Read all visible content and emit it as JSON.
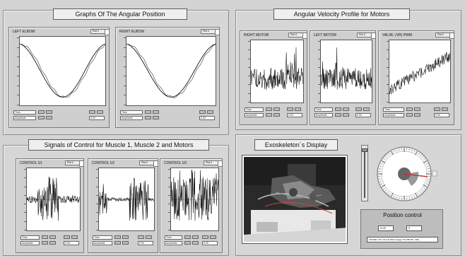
{
  "sections": {
    "angular_position": {
      "title": "Graphs Of The Angular Position"
    },
    "velocity": {
      "title": "Angular Velocity Profile for Motors"
    },
    "signals": {
      "title": "Signals of Control for Muscle 1, Muscle 2 and Motors"
    },
    "exoskeleton": {
      "title": "Exoskeleton´s Display"
    }
  },
  "graphs": {
    "left_elbow": {
      "title": "LEFT ELBOW",
      "plot_btn": "Plot 0",
      "ctrl1": "Time",
      "ctrl2": "Amplitude",
      "readout": "0.00"
    },
    "right_elbow": {
      "title": "RIGHT ELBOW",
      "plot_btn": "Plot 0",
      "ctrl1": "Time",
      "ctrl2": "Amplitude",
      "readout": "0.00"
    },
    "right_motor": {
      "title": "RIGHT MOTOR",
      "plot_btn": "Plot 0",
      "ctrl1": "Time",
      "ctrl2": "Amplitude",
      "readout": "0.00"
    },
    "left_motor": {
      "title": "LEFT MOTOR",
      "plot_btn": "Plot 0",
      "ctrl1": "Time",
      "ctrl2": "Amplitude",
      "readout": "0.00"
    },
    "valve": {
      "title": "VALVE: (VR) PWM",
      "plot_btn": "Plot 0",
      "ctrl1": "Time",
      "ctrl2": "Amplitude",
      "readout": "0.00"
    },
    "control_u1": {
      "title": "CONTROL U1",
      "plot_btn": "Plot 0",
      "ctrl1": "Time",
      "ctrl2": "Amplitude",
      "readout": "0.00"
    },
    "control_u2": {
      "title": "CONTROL U2",
      "plot_btn": "Plot 0",
      "ctrl1": "Time",
      "ctrl2": "Amplitude",
      "readout": "0.00"
    },
    "control_u3": {
      "title": "CONTROL U3",
      "plot_btn": "Plot 0",
      "ctrl1": "Time",
      "ctrl2": "Amplitude",
      "readout": "0.00"
    }
  },
  "position_control": {
    "title": "Position control",
    "value1": "0.00",
    "value2": "0",
    "status": "ONLINE / PS / ID and RUN (image 770.305-95 - 000)"
  },
  "colors": {
    "background": "#d3d3d3",
    "panel": "#cfcfcf",
    "plot_bg": "#ffffff",
    "trace": "#111111"
  }
}
